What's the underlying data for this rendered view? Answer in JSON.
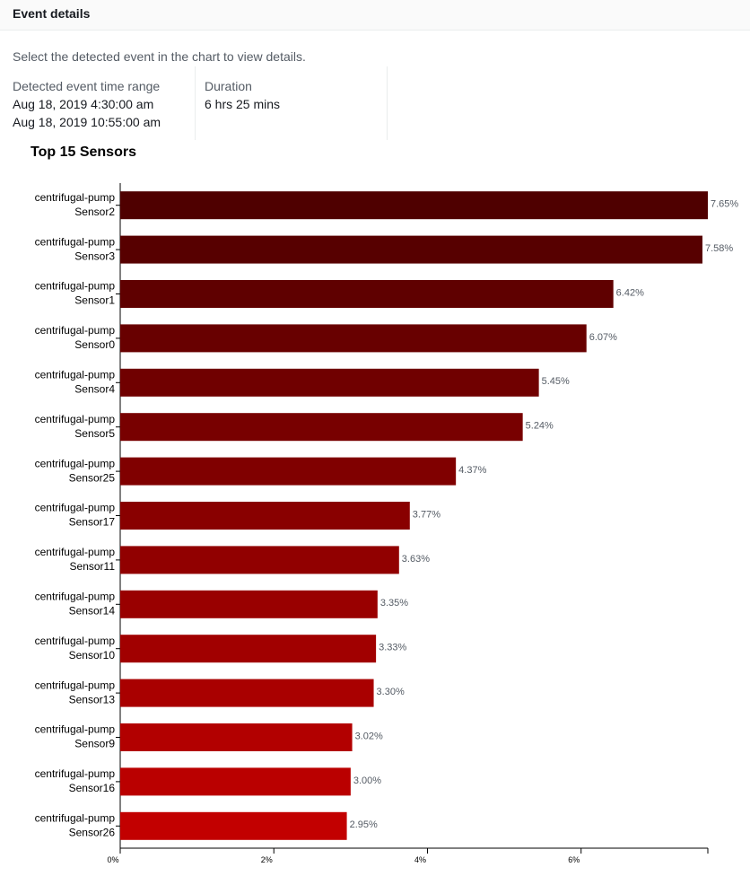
{
  "panel": {
    "title": "Event details",
    "hint": "Select the detected event in the chart to view details.",
    "time_range_label": "Detected event time range",
    "time_range_start": "Aug 18, 2019 4:30:00 am",
    "time_range_end": "Aug 18, 2019 10:55:00 am",
    "duration_label": "Duration",
    "duration_value": "6 hrs 25 mins"
  },
  "chart_data": {
    "type": "bar",
    "orientation": "horizontal",
    "title": "Top 15 Sensors",
    "categories": [
      [
        "centrifugal-pump",
        "Sensor2"
      ],
      [
        "centrifugal-pump",
        "Sensor3"
      ],
      [
        "centrifugal-pump",
        "Sensor1"
      ],
      [
        "centrifugal-pump",
        "Sensor0"
      ],
      [
        "centrifugal-pump",
        "Sensor4"
      ],
      [
        "centrifugal-pump",
        "Sensor5"
      ],
      [
        "centrifugal-pump",
        "Sensor25"
      ],
      [
        "centrifugal-pump",
        "Sensor17"
      ],
      [
        "centrifugal-pump",
        "Sensor11"
      ],
      [
        "centrifugal-pump",
        "Sensor14"
      ],
      [
        "centrifugal-pump",
        "Sensor10"
      ],
      [
        "centrifugal-pump",
        "Sensor13"
      ],
      [
        "centrifugal-pump",
        "Sensor9"
      ],
      [
        "centrifugal-pump",
        "Sensor16"
      ],
      [
        "centrifugal-pump",
        "Sensor26"
      ]
    ],
    "values": [
      7.65,
      7.58,
      6.42,
      6.07,
      5.45,
      5.24,
      4.37,
      3.77,
      3.63,
      3.35,
      3.33,
      3.3,
      3.02,
      3.0,
      2.95
    ],
    "value_labels": [
      "7.65%",
      "7.58%",
      "6.42%",
      "6.07%",
      "5.45%",
      "5.24%",
      "4.37%",
      "3.77%",
      "3.63%",
      "3.35%",
      "3.33%",
      "3.30%",
      "3.02%",
      "3.00%",
      "2.95%"
    ],
    "xticks": [
      0,
      2,
      4,
      6
    ],
    "xtick_labels": [
      "0%",
      "2%",
      "4%",
      "6%"
    ],
    "xlim": [
      0,
      7.65
    ],
    "bar_color_start": "#4f0000",
    "bar_color_end": "#c20000",
    "grid": false,
    "legend": false
  }
}
